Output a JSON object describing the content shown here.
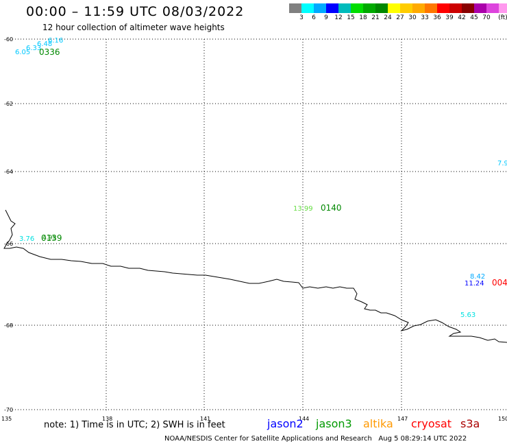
{
  "header": {
    "title": "00:00 – 11:59 UTC 08/03/2022",
    "subtitle": "12 hour collection of altimeter wave heights"
  },
  "legend": {
    "colors": [
      "#808080",
      "#00ffff",
      "#00aaff",
      "#0000ff",
      "#00bbbb",
      "#00dd00",
      "#00aa00",
      "#008800",
      "#ffff00",
      "#ffcc00",
      "#ffaa00",
      "#ff7700",
      "#ff0000",
      "#cc0000",
      "#880000",
      "#aa00aa",
      "#dd44dd",
      "#ff99ee",
      "#000000"
    ],
    "labels": [
      "3",
      "6",
      "9",
      "12",
      "15",
      "18",
      "21",
      "24",
      "27",
      "30",
      "33",
      "36",
      "39",
      "42",
      "45",
      "70"
    ],
    "unit": "(ft)"
  },
  "axes": {
    "lat_labels": [
      "-60",
      "-62",
      "-64",
      "-66",
      "-68",
      "-70"
    ],
    "lon_labels": [
      "135",
      "138",
      "141",
      "144",
      "147",
      "150"
    ]
  },
  "observations": [
    {
      "text": "6.05",
      "color": "#00c8ff"
    },
    {
      "text": "6.33",
      "color": "#00c8ff"
    },
    {
      "text": "6.48",
      "color": "#00c8ff"
    },
    {
      "text": "6.16",
      "color": "#00c8ff"
    },
    {
      "text": "0336",
      "color": "#008800"
    },
    {
      "text": "7.9",
      "color": "#00c8ff"
    },
    {
      "text": "13.99",
      "color": "#66dd44"
    },
    {
      "text": "0140",
      "color": "#008800"
    },
    {
      "text": "3.76",
      "color": "#00e0e0"
    },
    {
      "text": "4.95",
      "color": "#008800"
    },
    {
      "text": "0139",
      "color": "#008800"
    },
    {
      "text": "8.42",
      "color": "#00aaff"
    },
    {
      "text": "11.24",
      "color": "#0000ff"
    },
    {
      "text": "004",
      "color": "#ff0000"
    },
    {
      "text": "5.63",
      "color": "#00e0e0"
    }
  ],
  "footer": {
    "note": "note:  1) Time is in UTC;  2) SWH is in feet",
    "satellites": [
      {
        "name": "jason2",
        "color": "#0000ff"
      },
      {
        "name": "jason3",
        "color": "#009900"
      },
      {
        "name": "altika",
        "color": "#ff9900"
      },
      {
        "name": "cryosat",
        "color": "#ff0000"
      },
      {
        "name": "s3a",
        "color": "#aa0000"
      }
    ],
    "credit": "NOAA/NESDIS Center for Satellite Applications and Research",
    "timestamp": "Aug  5 08:29:14 UTC 2022"
  }
}
